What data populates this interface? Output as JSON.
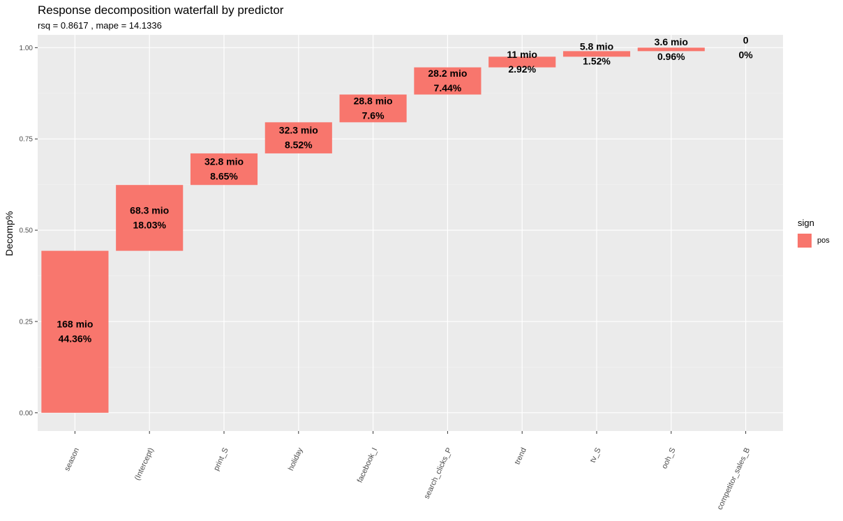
{
  "title": "Response decomposition waterfall by predictor",
  "subtitle": "rsq = 0.8617 , mape = 14.1336",
  "legend": {
    "title": "sign",
    "items": [
      {
        "label": "pos",
        "color": "#F8766D"
      }
    ]
  },
  "chart_data": {
    "type": "bar",
    "subtype": "waterfall",
    "orientation": "vertical",
    "ylabel": "Decomp%",
    "xlabel": "",
    "ylim": [
      -0.05,
      1.035
    ],
    "yticks": [
      0.0,
      0.25,
      0.5,
      0.75,
      1.0
    ],
    "ytick_labels": [
      "0.00",
      "0.25",
      "0.50",
      "0.75",
      "1.00"
    ],
    "grid": true,
    "legend_position": "right",
    "categories": [
      "season",
      "(Intercept)",
      "print_S",
      "holiday",
      "facebook_I",
      "search_clicks_P",
      "trend",
      "tv_S",
      "ooh_S",
      "competitor_sales_B"
    ],
    "series": [
      {
        "name": "pos",
        "color": "#F8766D",
        "start": [
          0.0,
          0.4436,
          0.6239,
          0.7104,
          0.7956,
          0.8716,
          0.946,
          0.9752,
          0.9904,
          1.0
        ],
        "end": [
          0.4436,
          0.6239,
          0.7104,
          0.7956,
          0.8716,
          0.946,
          0.9752,
          0.9904,
          1.0,
          1.0
        ],
        "values": [
          0.4436,
          0.1803,
          0.0865,
          0.0852,
          0.076,
          0.0744,
          0.0292,
          0.0152,
          0.0096,
          0.0
        ],
        "labels_amount": [
          "168 mio",
          "68.3 mio",
          "32.8 mio",
          "32.3 mio",
          "28.8 mio",
          "28.2 mio",
          "11 mio",
          "5.8 mio",
          "3.6 mio",
          "0"
        ],
        "labels_pct": [
          "44.36%",
          "18.03%",
          "8.65%",
          "8.52%",
          "7.6%",
          "7.44%",
          "2.92%",
          "1.52%",
          "0.96%",
          "0%"
        ]
      }
    ]
  }
}
